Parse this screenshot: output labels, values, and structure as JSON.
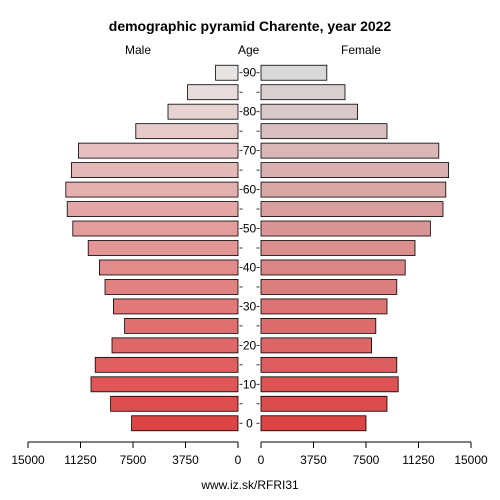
{
  "chart_data": {
    "type": "bar",
    "title": "demographic pyramid Charente, year 2022",
    "left_label": "Male",
    "center_label": "Age",
    "right_label": "Female",
    "age_groups": [
      0,
      5,
      10,
      15,
      20,
      25,
      30,
      35,
      40,
      45,
      50,
      55,
      60,
      65,
      70,
      75,
      80,
      85,
      90
    ],
    "age_tick_labels": [
      "0",
      "10",
      "20",
      "30",
      "40",
      "50",
      "60",
      "70",
      "80",
      "90"
    ],
    "x_tick_labels_male": [
      "15000",
      "11250",
      "7500",
      "3750",
      "0"
    ],
    "x_tick_labels_female": [
      "0",
      "3750",
      "7500",
      "11250",
      "15000"
    ],
    "xlim": [
      0,
      15000
    ],
    "series": [
      {
        "name": "Male",
        "values": [
          7600,
          9100,
          10500,
          10200,
          9000,
          8100,
          8900,
          9500,
          9900,
          10700,
          11800,
          12200,
          12300,
          11900,
          11400,
          7300,
          5000,
          3600,
          1600
        ]
      },
      {
        "name": "Female",
        "values": [
          7500,
          9000,
          9800,
          9700,
          7900,
          8200,
          9000,
          9700,
          10300,
          11000,
          12100,
          13000,
          13200,
          13400,
          12700,
          9000,
          6900,
          6000,
          4700
        ]
      }
    ],
    "colors": {
      "bar_light": "#e8e4e4",
      "male_dark": "#dd4444",
      "female_dark": "#dd4444",
      "outline": "#000000"
    }
  },
  "footer": "www.iz.sk/RFRI31"
}
